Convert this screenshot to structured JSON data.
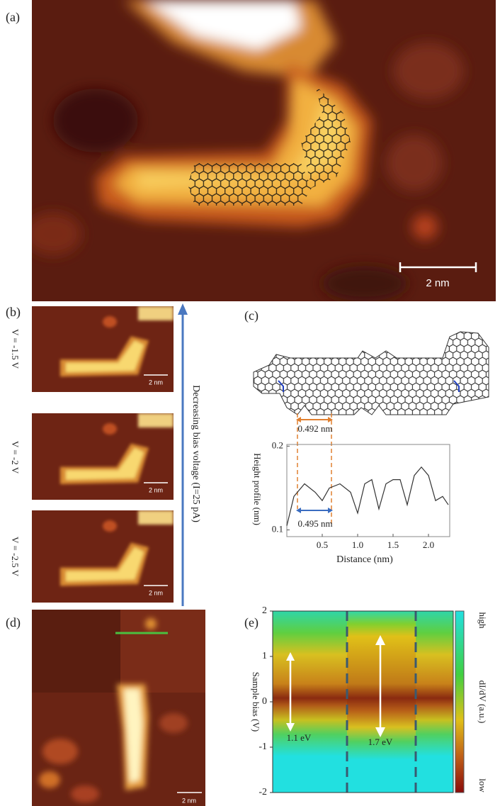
{
  "panels": {
    "a": {
      "label": "(a)",
      "scale_bar": "2 nm"
    },
    "b": {
      "label": "(b)",
      "voltages": [
        "V = -1.5 V",
        "V = -2 V",
        "V = -2.5 V"
      ],
      "scale_bar": "2 nm",
      "arrow_text": "Decreasing bias voltage (I=25 pA)"
    },
    "c": {
      "label": "(c)",
      "spacing_top": "0.492 nm",
      "spacing_bottom": "0.495 nm",
      "y_label": "Height profile (nm)",
      "x_label": "Distance (nm)",
      "x": [
        0.0,
        0.1,
        0.25,
        0.4,
        0.5,
        0.6,
        0.75,
        0.9,
        1.0,
        1.1,
        1.2,
        1.3,
        1.4,
        1.5,
        1.6,
        1.7,
        1.8,
        1.9,
        2.0,
        2.1,
        2.2,
        2.28
      ],
      "values": [
        0.105,
        0.14,
        0.155,
        0.145,
        0.135,
        0.15,
        0.155,
        0.145,
        0.12,
        0.155,
        0.16,
        0.125,
        0.155,
        0.16,
        0.16,
        0.13,
        0.165,
        0.175,
        0.165,
        0.135,
        0.14,
        0.13
      ],
      "xlim": [
        0,
        2.3
      ],
      "ylim": [
        0.092,
        0.202
      ],
      "xticks": [
        0.5,
        {
          "value": 1,
          "label": "1.0"
        },
        1.5,
        {
          "value": 2,
          "label": "2.0"
        }
      ],
      "yticks": [
        0.1,
        0.2
      ]
    },
    "d": {
      "label": "(d)",
      "scale_bar": "2 nm"
    },
    "e": {
      "label": "(e)",
      "y_label": "Sample bias (V)",
      "ylim": [
        -2,
        2
      ],
      "yticks": [
        -2,
        -1,
        0,
        1,
        2
      ],
      "gaps": [
        "1.1 eV",
        "1.7 eV"
      ],
      "colorbar": {
        "high": "high",
        "label": "dI/dV (a.u.)",
        "low": "low"
      }
    }
  }
}
